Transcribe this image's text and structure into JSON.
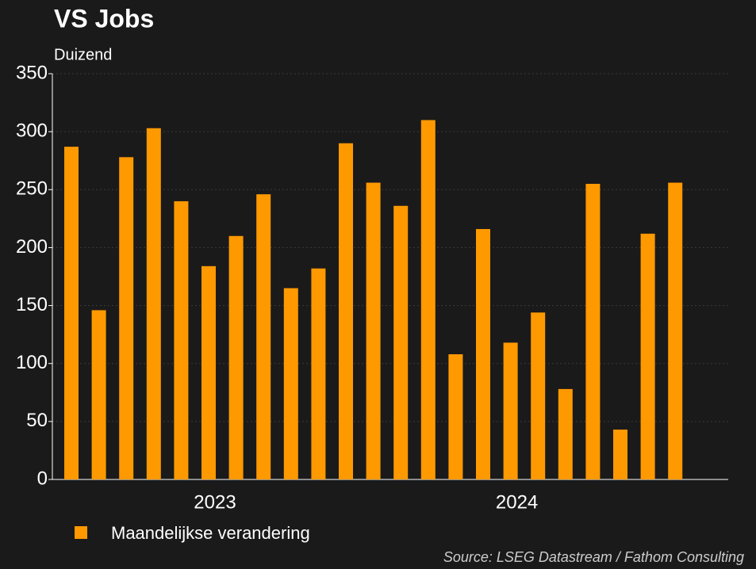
{
  "chart_data": {
    "type": "bar",
    "title": "VS Jobs",
    "subtitle": "Duizend",
    "categories": [
      null,
      null,
      null,
      null,
      null,
      "2023",
      null,
      null,
      null,
      null,
      null,
      null,
      null,
      null,
      null,
      null,
      "2024",
      null,
      null,
      null,
      null,
      null,
      null
    ],
    "series": [
      {
        "name": "Maandelijkse verandering",
        "color": "#ff9900",
        "values": [
          287,
          146,
          278,
          303,
          240,
          184,
          210,
          246,
          165,
          182,
          290,
          256,
          236,
          310,
          108,
          216,
          118,
          144,
          78,
          255,
          43,
          212,
          256
        ]
      }
    ],
    "ylim": [
      0,
      350
    ],
    "yticks": [
      0,
      50,
      100,
      150,
      200,
      250,
      300,
      350
    ],
    "grid": true,
    "legend": "bottom-left",
    "source": "Source: LSEG Datastream / Fathom Consulting"
  }
}
